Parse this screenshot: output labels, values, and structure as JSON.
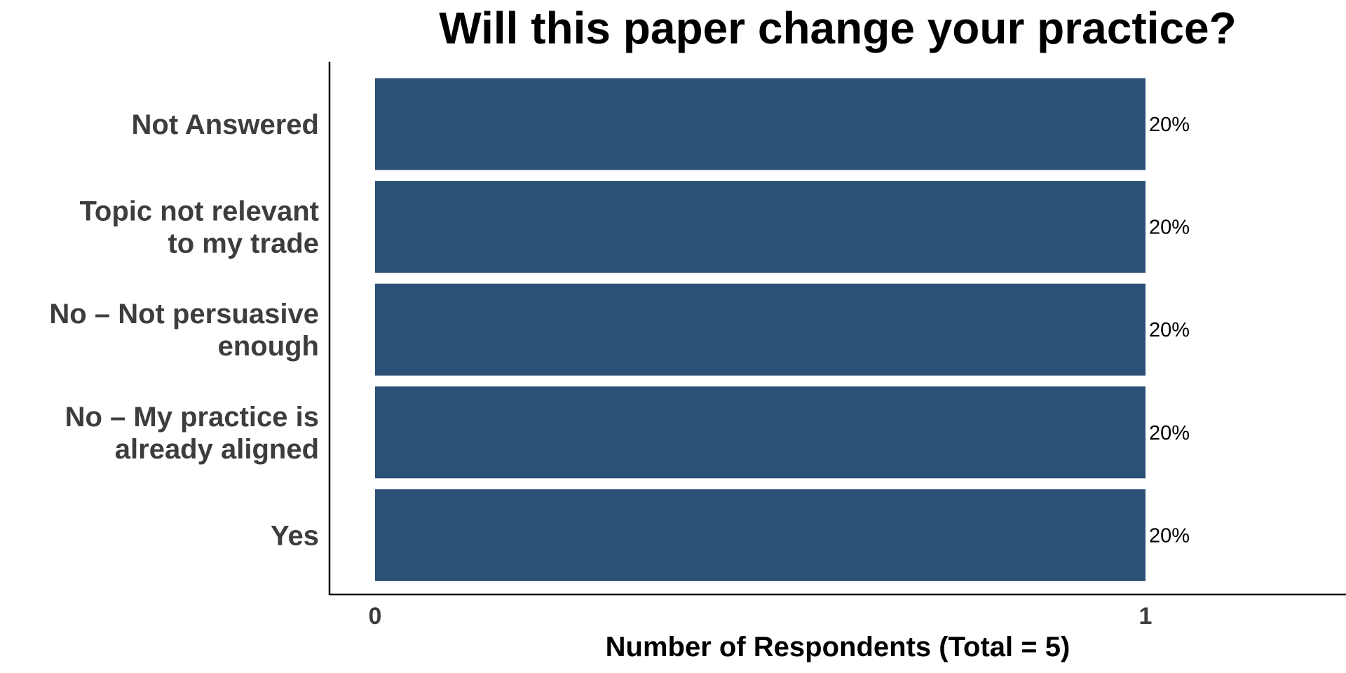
{
  "chart_data": {
    "type": "bar",
    "orientation": "horizontal",
    "title": "Will this paper change your practice?",
    "xlabel": "Number of Respondents (Total = 5)",
    "ylabel": "",
    "categories": [
      "Not Answered",
      "Topic not relevant to my trade",
      "No – Not persuasive enough",
      "No – My practice is already aligned",
      "Yes"
    ],
    "category_lines": [
      [
        "Not Answered"
      ],
      [
        "Topic not relevant",
        "to my trade"
      ],
      [
        "No – Not persuasive",
        "enough"
      ],
      [
        "No – My practice is",
        "already aligned"
      ],
      [
        "Yes"
      ]
    ],
    "values": [
      1,
      1,
      1,
      1,
      1
    ],
    "data_labels": [
      "20%",
      "20%",
      "20%",
      "20%",
      "20%"
    ],
    "xlim": [
      0,
      1.17
    ],
    "x_ticks": [
      0,
      1
    ],
    "x_tick_labels": [
      "0",
      "1"
    ],
    "grid": false,
    "legend": "none",
    "colors": {
      "bar": "#2c5177",
      "axis": "#000000"
    }
  }
}
